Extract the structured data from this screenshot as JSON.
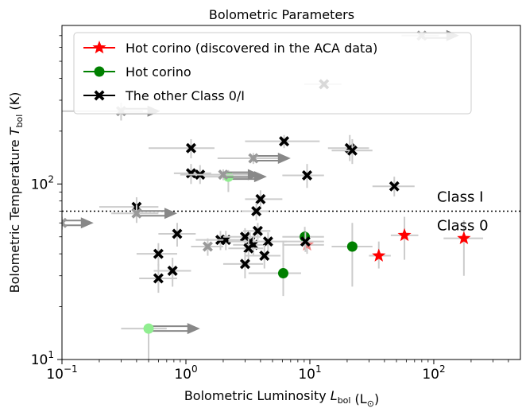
{
  "chart_data": {
    "type": "scatter",
    "title": "Bolometric Parameters",
    "xlabel": "Bolometric Luminosity",
    "xlabel_symbol": "L",
    "xlabel_sub": "bol",
    "xlabel_unit": "(L",
    "xlabel_unit_sub": "⊙",
    "xlabel_unit_close": ")",
    "ylabel": "Bolometric Temperature",
    "ylabel_symbol": "T",
    "ylabel_sub": "bol",
    "ylabel_unit": "(K)",
    "x_scale": "log",
    "y_scale": "log",
    "xlim": [
      0.1,
      500
    ],
    "ylim": [
      10,
      800
    ],
    "x_ticks": [
      {
        "value": 0.1,
        "base": "10",
        "exp": "−1"
      },
      {
        "value": 1,
        "base": "10",
        "exp": "0"
      },
      {
        "value": 10,
        "base": "10",
        "exp": "1"
      },
      {
        "value": 100,
        "base": "10",
        "exp": "2"
      }
    ],
    "y_ticks": [
      {
        "value": 10,
        "base": "10",
        "exp": "1"
      },
      {
        "value": 100,
        "base": "10",
        "exp": "2"
      }
    ],
    "grid": false,
    "legend_position": "top-left",
    "legend": [
      {
        "label": "Hot corino (discovered in the ACA data)",
        "marker": "star",
        "color": "#ff0000"
      },
      {
        "label": "Hot corino",
        "marker": "circle",
        "color": "#008000"
      },
      {
        "label": "The other Class 0/I",
        "marker": "x",
        "color": "#000000"
      }
    ],
    "threshold": {
      "y": 70,
      "label_above": "Class I",
      "label_below": "Class 0"
    },
    "colors": {
      "errorbar": "#cccccc",
      "arrow": "#888888",
      "aca": "#ff0000",
      "aca_light": "#f08080",
      "hot_corino": "#008000",
      "hot_corino_light": "#90ee90",
      "other": "#000000",
      "other_light": "#999999"
    },
    "series": [
      {
        "name": "Hot corino (discovered in the ACA data)",
        "marker": "star",
        "points": [
          {
            "x": 36,
            "y": 39,
            "xerr": [
              30,
              45
            ],
            "yerr": [
              33,
              47
            ]
          },
          {
            "x": 58,
            "y": 51,
            "xerr": [
              45,
              75
            ],
            "yerr": [
              37,
              65
            ]
          },
          {
            "x": 175,
            "y": 49,
            "xerr": [
              120,
              250
            ],
            "yerr": [
              30,
              62
            ]
          },
          {
            "x": 9.5,
            "y": 45,
            "xerr": [
              6,
              13
            ],
            "yerr": [
              40,
              50
            ],
            "faded": true
          }
        ]
      },
      {
        "name": "Hot corino",
        "marker": "circle",
        "points": [
          {
            "x": 6.1,
            "y": 31,
            "xerr": [
              3.2,
              8.5
            ],
            "yerr": [
              23,
              47
            ]
          },
          {
            "x": 9.1,
            "y": 50,
            "xerr": [
              6,
              13
            ],
            "yerr": [
              44,
              57
            ]
          },
          {
            "x": 22,
            "y": 44,
            "xerr": [
              15,
              32
            ],
            "yerr": [
              26,
              60
            ]
          },
          {
            "x": 2.2,
            "y": 110,
            "xerr": [
              1.1,
              3.6
            ],
            "yerr": [
              90,
              120
            ],
            "faded": true,
            "arrow_to": 4.5
          },
          {
            "x": 0.5,
            "y": 15,
            "xerr": [
              0.3,
              0.7
            ],
            "yerr": [
              10,
              16
            ],
            "faded": true,
            "arrow_to": 1.3
          }
        ]
      },
      {
        "name": "The other Class 0/I",
        "marker": "x",
        "points": [
          {
            "x": 1.1,
            "y": 160,
            "xerr": [
              0.5,
              1.7
            ],
            "yerr": [
              140,
              180
            ]
          },
          {
            "x": 6.2,
            "y": 175,
            "xerr": [
              3,
              12
            ],
            "yerr": [
              160,
              190
            ]
          },
          {
            "x": 21,
            "y": 160,
            "xerr": [
              14,
              30
            ],
            "yerr": [
              135,
              190
            ]
          },
          {
            "x": 22,
            "y": 155,
            "xerr": [
              15,
              32
            ],
            "yerr": [
              130,
              180
            ]
          },
          {
            "x": 13,
            "y": 370,
            "xerr": [
              9,
              18
            ],
            "yerr": [
              355,
              385
            ]
          },
          {
            "x": 1.1,
            "y": 115,
            "xerr": [
              0.8,
              1.6
            ],
            "yerr": [
              100,
              130
            ]
          },
          {
            "x": 1.3,
            "y": 113,
            "xerr": [
              0.9,
              1.9
            ],
            "yerr": [
              100,
              128
            ]
          },
          {
            "x": 9.5,
            "y": 112,
            "xerr": [
              6,
              13
            ],
            "yerr": [
              95,
              130
            ]
          },
          {
            "x": 48,
            "y": 97,
            "xerr": [
              32,
              70
            ],
            "yerr": [
              85,
              110
            ]
          },
          {
            "x": 4.0,
            "y": 82,
            "xerr": [
              3,
              6
            ],
            "yerr": [
              72,
              92
            ]
          },
          {
            "x": 0.4,
            "y": 74,
            "xerr": [
              0.2,
              0.6
            ],
            "yerr": [
              64,
              84
            ]
          },
          {
            "x": 3.7,
            "y": 70,
            "xerr": [
              2.8,
              4.6
            ],
            "yerr": [
              62,
              78
            ]
          },
          {
            "x": 3.8,
            "y": 54,
            "xerr": [
              2.9,
              4.8
            ],
            "yerr": [
              48,
              60
            ]
          },
          {
            "x": 0.85,
            "y": 52,
            "xerr": [
              0.6,
              1.2
            ],
            "yerr": [
              44,
              60
            ]
          },
          {
            "x": 1.9,
            "y": 48,
            "xerr": [
              1.2,
              2.5
            ],
            "yerr": [
              42,
              54
            ]
          },
          {
            "x": 2.1,
            "y": 48,
            "xerr": [
              1.4,
              2.8
            ],
            "yerr": [
              42,
              54
            ]
          },
          {
            "x": 3.0,
            "y": 50,
            "xerr": [
              2.0,
              4.0
            ],
            "yerr": [
              44,
              56
            ]
          },
          {
            "x": 3.3,
            "y": 47,
            "xerr": [
              2.2,
              4.4
            ],
            "yerr": [
              41,
              53
            ]
          },
          {
            "x": 3.5,
            "y": 45,
            "xerr": [
              2.4,
              4.7
            ],
            "yerr": [
              39,
              51
            ]
          },
          {
            "x": 4.6,
            "y": 47,
            "xerr": [
              3.5,
              6.5
            ],
            "yerr": [
              41,
              53
            ]
          },
          {
            "x": 9.2,
            "y": 47,
            "xerr": [
              6,
              13
            ],
            "yerr": [
              41,
              53
            ]
          },
          {
            "x": 3.2,
            "y": 43,
            "xerr": [
              2.2,
              4.2
            ],
            "yerr": [
              37,
              49
            ]
          },
          {
            "x": 0.6,
            "y": 40,
            "xerr": [
              0.4,
              0.85
            ],
            "yerr": [
              34,
              46
            ]
          },
          {
            "x": 4.3,
            "y": 39,
            "xerr": [
              3.0,
              5.8
            ],
            "yerr": [
              33,
              45
            ]
          },
          {
            "x": 3.0,
            "y": 35,
            "xerr": [
              2.0,
              4.2
            ],
            "yerr": [
              29,
              41
            ]
          },
          {
            "x": 0.78,
            "y": 32,
            "xerr": [
              0.55,
              1.1
            ],
            "yerr": [
              26,
              38
            ]
          },
          {
            "x": 0.6,
            "y": 29,
            "xerr": [
              0.42,
              0.85
            ],
            "yerr": [
              24,
              35
            ]
          },
          {
            "x": 0.3,
            "y": 260,
            "xerr": [
              0.1,
              0.45
            ],
            "yerr": [
              230,
              290
            ],
            "faded": true,
            "arrow_to": 0.62
          },
          {
            "x": 80,
            "y": 700,
            "xerr": [
              55,
              110
            ],
            "yerr": [
              690,
              710
            ],
            "faded": true,
            "arrow_to": 160
          },
          {
            "x": 3.5,
            "y": 140,
            "xerr": [
              1.8,
              6.5
            ],
            "yerr": [
              130,
              150
            ],
            "faded": true,
            "arrow_to": 7.0
          },
          {
            "x": 2.0,
            "y": 113,
            "xerr": [
              1.2,
              3.2
            ],
            "yerr": [
              105,
              121
            ],
            "faded": true,
            "arrow_to": 4.0
          },
          {
            "x": 0.4,
            "y": 68,
            "xerr": [
              0.25,
              0.6
            ],
            "yerr": [
              60,
              76
            ],
            "faded": true,
            "arrow_to": 0.85
          },
          {
            "x": 0.1,
            "y": 60,
            "xerr": [
              0.1,
              0.1
            ],
            "yerr": [
              55,
              65
            ],
            "faded": true,
            "arrow_to": 0.18
          },
          {
            "x": 1.5,
            "y": 44,
            "xerr": [
              1.1,
              2.0
            ],
            "yerr": [
              39,
              49
            ],
            "faded": true
          }
        ]
      }
    ]
  }
}
